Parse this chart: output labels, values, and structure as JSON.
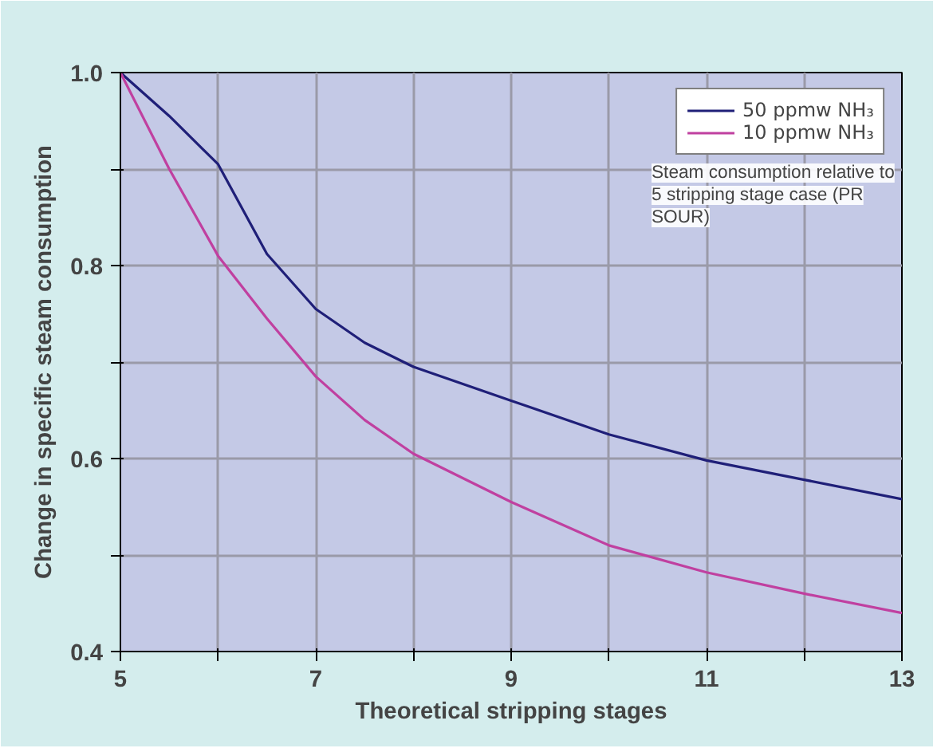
{
  "chart_data": {
    "type": "line",
    "xlabel": "Theoretical stripping stages",
    "ylabel": "Change in specific steam consumption",
    "x": [
      5,
      5.5,
      6,
      6.5,
      7,
      7.5,
      8,
      9,
      10,
      11,
      12,
      13
    ],
    "series": [
      {
        "name": "50 ppmw NH₃",
        "color": "#1f1f78",
        "values": [
          1.0,
          0.955,
          0.905,
          0.812,
          0.755,
          0.72,
          0.695,
          0.66,
          0.625,
          0.598,
          0.578,
          0.558
        ]
      },
      {
        "name": "10 ppmw NH₃",
        "color": "#c040a0",
        "values": [
          1.0,
          0.9,
          0.81,
          0.745,
          0.685,
          0.64,
          0.605,
          0.555,
          0.51,
          0.482,
          0.46,
          0.44
        ]
      }
    ],
    "xlim": [
      5,
      13
    ],
    "ylim": [
      0.4,
      1.0
    ],
    "xticks": [
      5,
      {
        "value": 6,
        "label": null
      },
      7,
      {
        "value": 8,
        "label": null
      },
      9,
      {
        "value": 10,
        "label": null
      },
      11,
      {
        "value": 12,
        "label": null
      },
      13
    ],
    "yticks": [
      0.4,
      {
        "value": 0.5,
        "label": null
      },
      0.6,
      {
        "value": 0.7,
        "label": null
      },
      0.8,
      {
        "value": 0.9,
        "label": null
      },
      {
        "value": 1,
        "label": "1.0"
      }
    ],
    "annotations": [
      "Steam consumption relative to 5 stripping stage case (PR SOUR)"
    ],
    "grid": true,
    "legend": "top right",
    "marker": "none",
    "line_style": "solid"
  }
}
